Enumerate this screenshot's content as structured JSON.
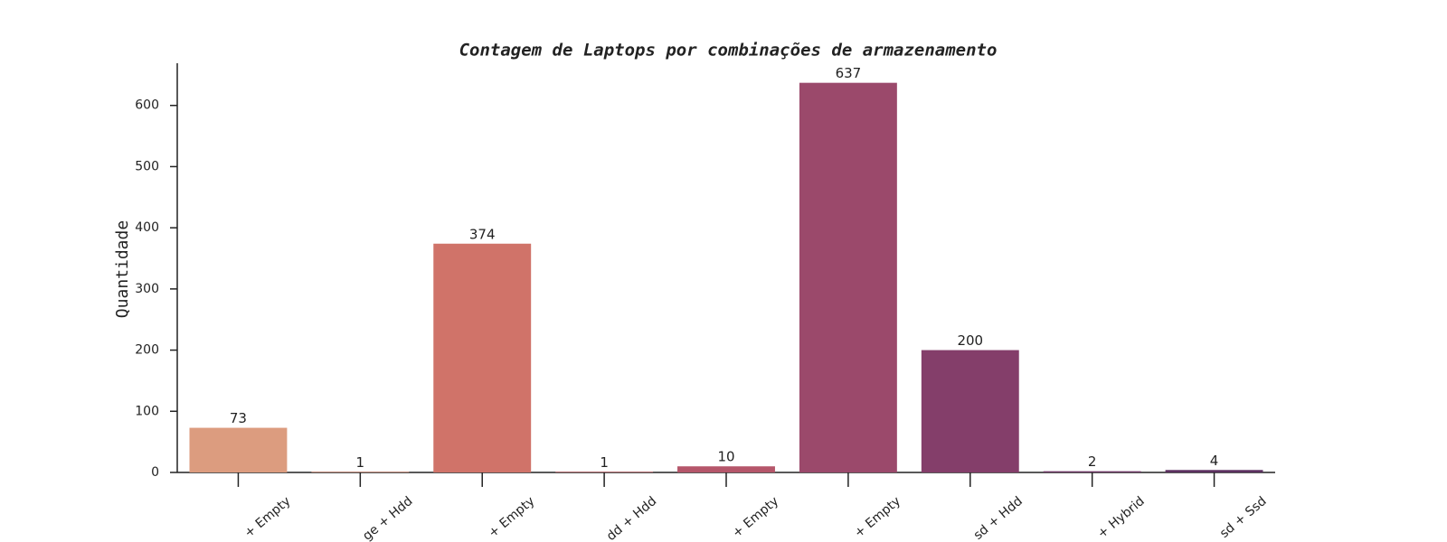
{
  "chart_data": {
    "type": "bar",
    "title": "Contagem de Laptops por combinações de armazenamento",
    "ylabel": "Quantidade",
    "categories": [
      "+ Empty",
      "ge + Hdd",
      "+ Empty",
      "dd + Hdd",
      "+ Empty",
      "+ Empty",
      "sd + Hdd",
      "+ Hybrid",
      "sd + Ssd"
    ],
    "values": [
      73,
      1,
      374,
      1,
      10,
      637,
      200,
      2,
      4
    ],
    "colors": [
      "#dc9c7f",
      "#d98a74",
      "#d07369",
      "#c76369",
      "#b5566a",
      "#9b496b",
      "#843e6a",
      "#6e3766",
      "#5c3160"
    ],
    "ylim": [
      0,
      669
    ],
    "yticks": [
      0,
      100,
      200,
      300,
      400,
      500,
      600
    ]
  }
}
